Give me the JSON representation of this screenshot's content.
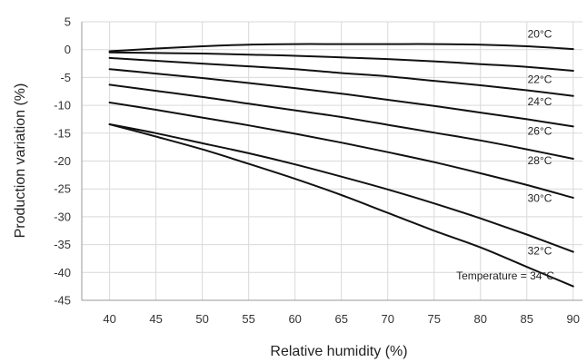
{
  "chart_data": {
    "type": "line",
    "title": "",
    "xlabel": "Relative humidity (%)",
    "ylabel": "Production variation (%)",
    "xlim": [
      37,
      91
    ],
    "ylim": [
      -45,
      5
    ],
    "x_ticks": [
      40,
      45,
      50,
      55,
      60,
      65,
      70,
      75,
      80,
      85,
      90
    ],
    "y_ticks": [
      5,
      0,
      -5,
      -10,
      -15,
      -20,
      -25,
      -30,
      -35,
      -40,
      -45
    ],
    "grid": true,
    "x": [
      40,
      45,
      50,
      55,
      60,
      65,
      70,
      75,
      80,
      85,
      90
    ],
    "series": [
      {
        "name": "20°C",
        "label": "20°C",
        "values": [
          -0.3,
          0.2,
          0.6,
          0.9,
          1.0,
          1.0,
          1.0,
          1.0,
          0.9,
          0.6,
          0.1
        ]
      },
      {
        "name": "22°C",
        "label": "22°C",
        "values": [
          -0.5,
          -0.6,
          -0.7,
          -0.9,
          -1.1,
          -1.4,
          -1.7,
          -2.1,
          -2.6,
          -3.1,
          -3.8
        ]
      },
      {
        "name": "24°C",
        "label": "24°C",
        "values": [
          -1.5,
          -2.0,
          -2.5,
          -3.0,
          -3.5,
          -4.2,
          -4.8,
          -5.6,
          -6.4,
          -7.3,
          -8.3
        ]
      },
      {
        "name": "26°C",
        "label": "26°C",
        "values": [
          -3.5,
          -4.3,
          -5.1,
          -6.0,
          -6.9,
          -7.9,
          -9.0,
          -10.1,
          -11.3,
          -12.5,
          -13.8
        ]
      },
      {
        "name": "28°C",
        "label": "28°C",
        "values": [
          -6.3,
          -7.4,
          -8.5,
          -9.7,
          -10.9,
          -12.1,
          -13.5,
          -14.9,
          -16.3,
          -17.9,
          -19.6
        ]
      },
      {
        "name": "30°C",
        "label": "30°C",
        "values": [
          -9.5,
          -10.8,
          -12.2,
          -13.6,
          -15.1,
          -16.7,
          -18.4,
          -20.2,
          -22.2,
          -24.3,
          -26.6
        ]
      },
      {
        "name": "32°C",
        "label": "32°C",
        "values": [
          -13.4,
          -15.0,
          -16.8,
          -18.6,
          -20.6,
          -22.8,
          -25.1,
          -27.6,
          -30.3,
          -33.2,
          -36.3
        ]
      },
      {
        "name": "34°C",
        "label": "Temperature = 34°C",
        "values": [
          -13.4,
          -15.6,
          -17.9,
          -20.5,
          -23.2,
          -26.1,
          -29.3,
          -32.5,
          -35.5,
          -39.0,
          -42.5
        ]
      }
    ]
  }
}
